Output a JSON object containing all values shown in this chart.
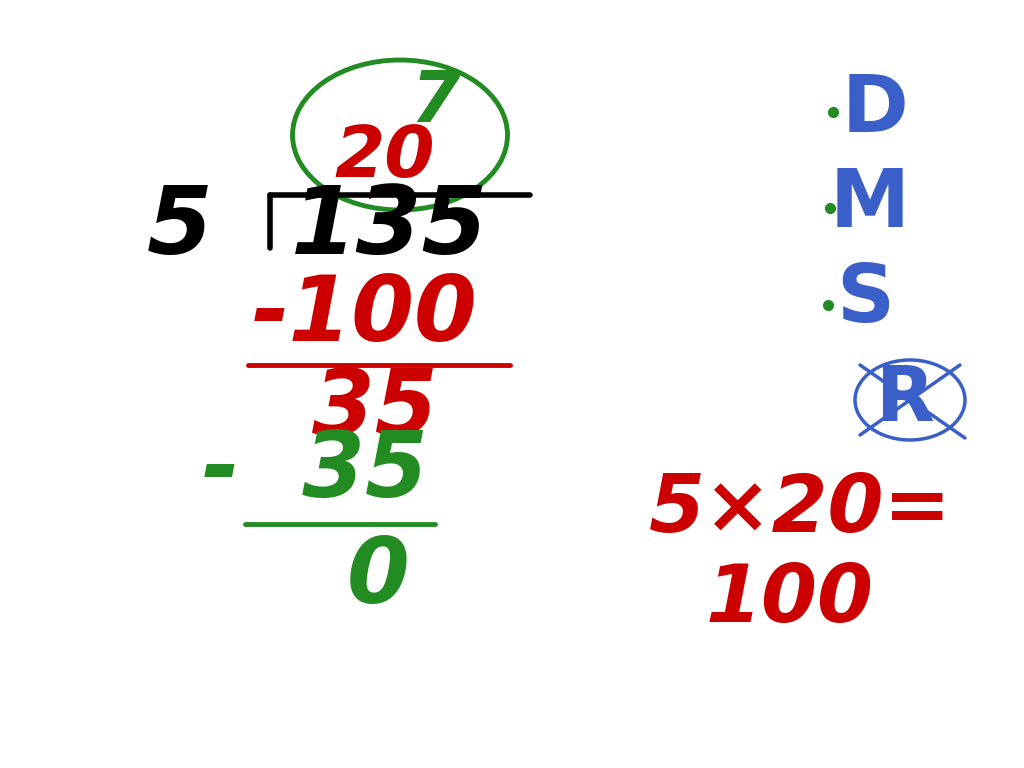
{
  "bg_color": "#ffffff",
  "left_panel": {
    "divisor": "5",
    "dividend": "135",
    "quotient_7": "7",
    "quotient_20": "20",
    "step1_subtract": "-100",
    "step1_remainder": "35",
    "step2_subtract": "-  35",
    "step2_remainder": "0",
    "divisor_color": "#000000",
    "dividend_color": "#000000",
    "quotient_7_color": "#228B22",
    "quotient_20_color": "#cc0000",
    "subtract1_color": "#cc0000",
    "remainder1_color": "#cc0000",
    "subtract2_color": "#228B22",
    "remainder2_color": "#228B22",
    "line1_color": "#cc0000",
    "line2_color": "#228B22",
    "bracket_color": "#000000",
    "circle_color": "#228B22"
  },
  "right_panel": {
    "D_color": "#3a5fc8",
    "M_color": "#3a5fc8",
    "S_color": "#3a5fc8",
    "R_color": "#3a5fc8",
    "dot_D_color": "#228B22",
    "dot_M_color": "#228B22",
    "dot_S_color": "#228B22",
    "equation": "5×20=",
    "equation2": "100",
    "eq_color": "#cc0000"
  }
}
